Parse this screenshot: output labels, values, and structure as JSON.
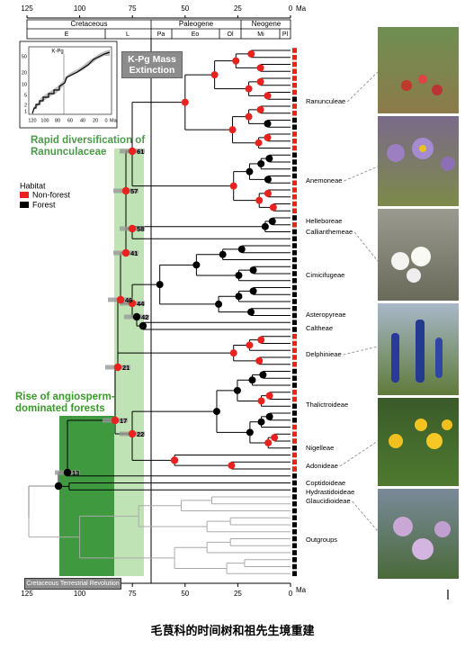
{
  "top_axis": {
    "ticks": [
      "125",
      "100",
      "75",
      "50",
      "25",
      "0"
    ],
    "unit": "Ma"
  },
  "periods": [
    "Cretaceous",
    "Paleogene",
    "Neogene"
  ],
  "epochs": [
    "E",
    "L",
    "Pa",
    "Eo",
    "Ol",
    "Mi",
    "Pl"
  ],
  "annotations": {
    "kpg": "K-Pg Mass Extinction",
    "rapid": "Rapid diversification of Ranunculaceae",
    "rise": "Rise of angiosperm-dominated forests",
    "ctr": "Cretaceous Terrestrial Revolution"
  },
  "inset": {
    "label": "K-Pg",
    "yticks": [
      "1",
      "2",
      "5",
      "10",
      "20",
      "50"
    ],
    "xticks": [
      "120",
      "100",
      "80",
      "60",
      "40",
      "20",
      "0"
    ],
    "unit": "Ma"
  },
  "legend": {
    "title": "Habitat",
    "items": [
      "Non-forest",
      "Forest"
    ]
  },
  "node_labels": [
    "61",
    "57",
    "58",
    "41",
    "46",
    "44",
    "42",
    "21",
    "17",
    "22",
    "13"
  ],
  "tribes": [
    "Ranunculeae",
    "Anemoneae",
    "Helleboreae",
    "Callianthemeae",
    "Cimicifugeae",
    "Asteropyreae",
    "Caltheae",
    "Delphinieae",
    "Thalictroideae",
    "Nigelleae",
    "Adonideae",
    "Coptidoideae",
    "Hydrastidoideae",
    "Glaucidioideae",
    "Outgroups"
  ],
  "bottom_axis": {
    "ticks": [
      "125",
      "100",
      "75",
      "50",
      "25",
      "0"
    ],
    "unit": "Ma"
  },
  "caption": "毛茛科的时间树和祖先生境重建"
}
